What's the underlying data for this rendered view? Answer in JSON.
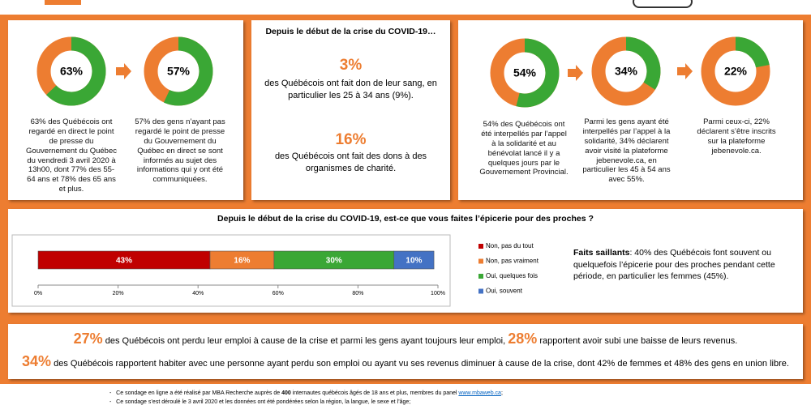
{
  "panel1": {
    "donuts": [
      {
        "value": 63,
        "value_label": "63%",
        "text": "63% des Québécois ont regardé en direct le point de presse du Gouvernement du Québec du vendredi 3 avril 2020 à 13h00, dont 77% des 55-64 ans et 78% des 65 ans et plus."
      },
      {
        "value": 57,
        "value_label": "57%",
        "text": "57% des gens n’ayant pas regardé le point de presse du Gouvernement du Québec en direct se sont informés au sujet des informations qui y ont été communiquées."
      }
    ]
  },
  "panel2": {
    "title": "Depuis le début de la crise du COVID-19…",
    "stats": [
      {
        "figure": "3%",
        "text": "des Québécois ont fait don de leur sang, en particulier les 25 à 34 ans (9%)."
      },
      {
        "figure": "16%",
        "text": "des Québécois ont fait des dons à des organismes de charité."
      }
    ]
  },
  "panel3": {
    "donuts": [
      {
        "value": 54,
        "value_label": "54%",
        "text": "54% des Québécois ont été interpellés par l’appel à la solidarité et au bénévolat lancé il y a quelques jours par le Gouvernement Provincial."
      },
      {
        "value": 34,
        "value_label": "34%",
        "text": "Parmi les gens ayant été interpellés par l’appel à la solidarité, 34% déclarent avoir visité la plateforme jebenevole.ca, en particulier les 45 à 54 ans avec 55%."
      },
      {
        "value": 22,
        "value_label": "22%",
        "text": "Parmi ceux-ci, 22% déclarent s’être inscrits sur la plateforme jebenevole.ca."
      }
    ]
  },
  "chart_data": {
    "type": "bar",
    "orientation": "horizontal",
    "stacked": true,
    "title": "Depuis le début de la crise du COVID-19, est-ce que vous faites l’épicerie pour des proches ?",
    "series": [
      {
        "name": "Non, pas du tout",
        "color": "#c00000",
        "values": [
          43
        ],
        "value_labels": [
          "43%"
        ]
      },
      {
        "name": "Non, pas vraiment",
        "color": "#ed7d31",
        "values": [
          16
        ],
        "value_labels": [
          "16%"
        ]
      },
      {
        "name": "Oui, quelques fois",
        "color": "#3aa735",
        "values": [
          30
        ],
        "value_labels": [
          "30%"
        ]
      },
      {
        "name": "Oui, souvent",
        "color": "#4472c4",
        "values": [
          10
        ],
        "value_labels": [
          "10%"
        ]
      }
    ],
    "xlim": [
      0,
      100
    ],
    "xticks": [
      {
        "value": 0,
        "label": "0%"
      },
      {
        "value": 20,
        "label": "20%"
      },
      {
        "value": 40,
        "label": "40%"
      },
      {
        "value": 60,
        "label": "60%"
      },
      {
        "value": 80,
        "label": "80%"
      },
      {
        "value": 100,
        "label": "100%"
      }
    ]
  },
  "highlights": {
    "label": "Faits saillants",
    "text": ": 40% des Québécois font souvent ou quelquefois l’épicerie pour des proches pendant cette période, en particulier les femmes (45%)."
  },
  "bottom": {
    "line1": [
      "27%",
      " des Québécois ont perdu leur emploi à cause de la crise et parmi les gens ayant toujours leur emploi, ",
      "28%",
      " rapportent avoir subi une baisse de leurs revenus."
    ],
    "line2": [
      "34%",
      " des Québécois rapportent habiter avec une personne ayant perdu son emploi ou ayant vu ses revenus diminuer à cause de la crise, dont 42% de femmes et 48% des gens en union libre."
    ]
  },
  "footer": {
    "note1": [
      "Ce sondage en ligne a été réalisé par MBA Recherche auprès de ",
      "400",
      " internautes québécois âgés de 18 ans et plus, membres du panel ",
      "www.mbaweb.ca",
      ";"
    ],
    "note2": "Ce sondage s’est déroulé le 3 avril 2020 et les données ont été pondérées selon la région, la langue, le sexe et l’âge;"
  }
}
